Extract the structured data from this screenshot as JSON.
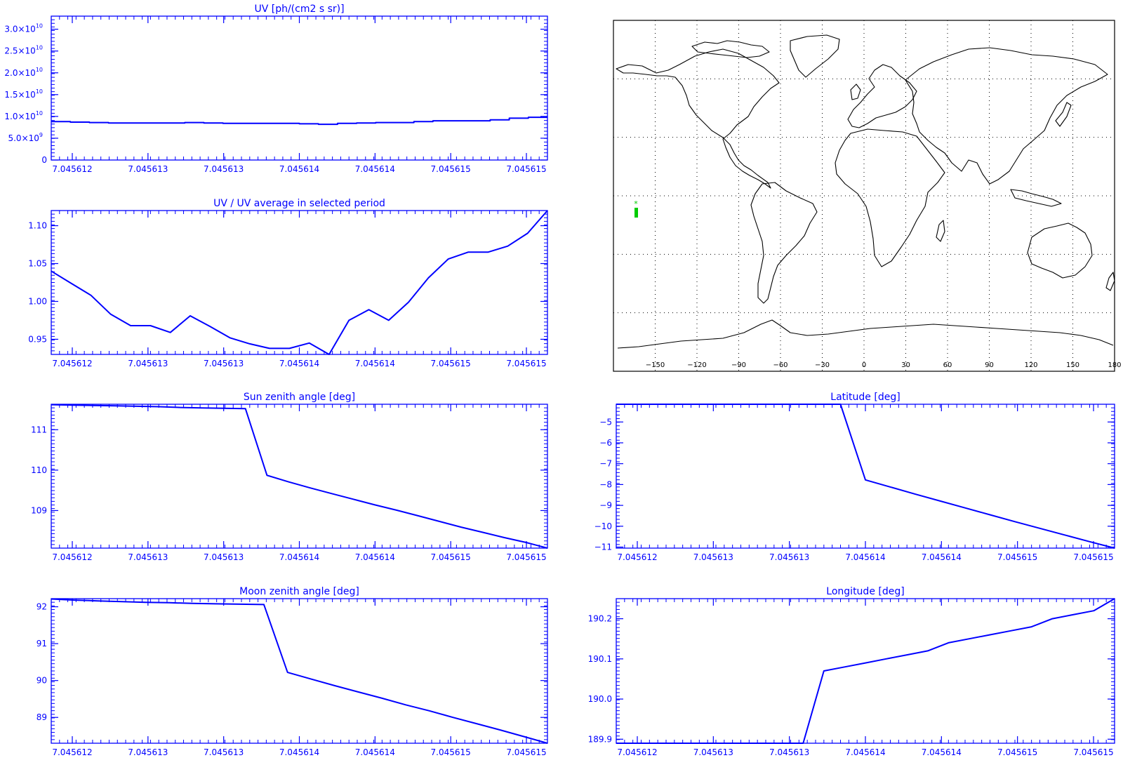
{
  "colors": {
    "axis": "#0000ff",
    "line": "#0000ff",
    "map_frame": "#000000",
    "coast": "#000000",
    "marker": "#00cc00"
  },
  "x_tick_labels": [
    "7.045612",
    "7.045613",
    "7.045613",
    "7.045614",
    "7.045614",
    "7.045615",
    "7.045615"
  ],
  "chart_data": [
    {
      "id": "uv",
      "type": "line",
      "title": "UV [ph/(cm2 s sr)]",
      "ylim": [
        0,
        33000000000
      ],
      "y_ticks": [
        {
          "v": 0,
          "label": "0"
        },
        {
          "v": 5000000000,
          "label": "5.0×10",
          "exp": "9"
        },
        {
          "v": 10000000000,
          "label": "1.0×10",
          "exp": "10"
        },
        {
          "v": 15000000000,
          "label": "1.5×10",
          "exp": "10"
        },
        {
          "v": 20000000000,
          "label": "2.0×10",
          "exp": "10"
        },
        {
          "v": 25000000000,
          "label": "2.5×10",
          "exp": "10"
        },
        {
          "v": 30000000000,
          "label": "3.0×10",
          "exp": "10"
        }
      ],
      "step": true,
      "values": [
        8800000000.0,
        8700000000.0,
        8600000000.0,
        8500000000.0,
        8500000000.0,
        8500000000.0,
        8500000000.0,
        8600000000.0,
        8500000000.0,
        8400000000.0,
        8400000000.0,
        8400000000.0,
        8400000000.0,
        8300000000.0,
        8200000000.0,
        8400000000.0,
        8500000000.0,
        8600000000.0,
        8600000000.0,
        8800000000.0,
        9000000000.0,
        9000000000.0,
        9000000000.0,
        9200000000.0,
        9600000000.0,
        9800000000.0
      ]
    },
    {
      "id": "uv_ratio",
      "type": "line",
      "title": "UV / UV average in selected period",
      "ylim": [
        0.93,
        1.12
      ],
      "y_ticks": [
        {
          "v": 0.95,
          "label": "0.95"
        },
        {
          "v": 1.0,
          "label": "1.00"
        },
        {
          "v": 1.05,
          "label": "1.05"
        },
        {
          "v": 1.1,
          "label": "1.10"
        }
      ],
      "values": [
        1.04,
        1.024,
        1.008,
        0.983,
        0.968,
        0.968,
        0.959,
        0.981,
        0.967,
        0.952,
        0.944,
        0.938,
        0.938,
        0.945,
        0.93,
        0.975,
        0.989,
        0.975,
        0.999,
        1.031,
        1.056,
        1.065,
        1.065,
        1.073,
        1.09,
        1.12
      ]
    },
    {
      "id": "sza",
      "type": "line",
      "title": "Sun zenith angle [deg]",
      "ylim": [
        108.07,
        111.63
      ],
      "y_ticks": [
        {
          "v": 109,
          "label": "109"
        },
        {
          "v": 110,
          "label": "110"
        },
        {
          "v": 111,
          "label": "111"
        }
      ],
      "values": [
        111.62,
        111.61,
        111.6,
        111.59,
        111.58,
        111.57,
        111.55,
        111.54,
        111.53,
        111.52,
        109.87,
        109.71,
        109.56,
        109.42,
        109.28,
        109.14,
        109.01,
        108.87,
        108.73,
        108.59,
        108.46,
        108.33,
        108.21,
        108.07
      ]
    },
    {
      "id": "mza",
      "type": "line",
      "title": "Moon zenith angle [deg]",
      "ylim": [
        88.3,
        92.22
      ],
      "y_ticks": [
        {
          "v": 89,
          "label": "89"
        },
        {
          "v": 90,
          "label": "90"
        },
        {
          "v": 91,
          "label": "91"
        },
        {
          "v": 92,
          "label": "92"
        }
      ],
      "values": [
        92.21,
        92.18,
        92.16,
        92.14,
        92.12,
        92.11,
        92.09,
        92.08,
        92.07,
        92.06,
        90.22,
        90.04,
        89.86,
        89.69,
        89.52,
        89.34,
        89.18,
        89.0,
        88.83,
        88.66,
        88.48,
        88.3
      ]
    },
    {
      "id": "lat",
      "type": "line",
      "title": "Latitude [deg]",
      "ylim": [
        -11.05,
        -4.15
      ],
      "y_ticks": [
        {
          "v": -11,
          "label": "−11"
        },
        {
          "v": -10,
          "label": "−10"
        },
        {
          "v": -9,
          "label": "−9"
        },
        {
          "v": -8,
          "label": "−8"
        },
        {
          "v": -7,
          "label": "−7"
        },
        {
          "v": -6,
          "label": "−6"
        },
        {
          "v": -5,
          "label": "−5"
        }
      ],
      "values": [
        -4.15,
        -4.15,
        -4.15,
        -4.15,
        -4.15,
        -4.15,
        -4.15,
        -4.15,
        -4.15,
        -4.15,
        -7.78,
        -8.12,
        -8.46,
        -8.79,
        -9.12,
        -9.45,
        -9.78,
        -10.1,
        -10.42,
        -10.74,
        -11.05
      ]
    },
    {
      "id": "lon",
      "type": "line",
      "title": "Longitude [deg]",
      "ylim": [
        189.89,
        190.25
      ],
      "y_ticks": [
        {
          "v": 189.9,
          "label": "189.9"
        },
        {
          "v": 190.0,
          "label": "190.0"
        },
        {
          "v": 190.1,
          "label": "190.1"
        },
        {
          "v": 190.2,
          "label": "190.2"
        }
      ],
      "values": [
        189.89,
        189.89,
        189.89,
        189.89,
        189.89,
        189.89,
        189.89,
        189.89,
        189.89,
        189.89,
        190.07,
        190.08,
        190.09,
        190.1,
        190.11,
        190.12,
        190.14,
        190.15,
        190.16,
        190.17,
        190.18,
        190.2,
        190.21,
        190.22,
        190.25
      ]
    }
  ],
  "map": {
    "x_tick_labels": [
      "−150",
      "−120",
      "−90",
      "−60",
      "−30",
      "0",
      "30",
      "60",
      "90",
      "120",
      "150",
      "180"
    ],
    "marker_label": "*"
  }
}
